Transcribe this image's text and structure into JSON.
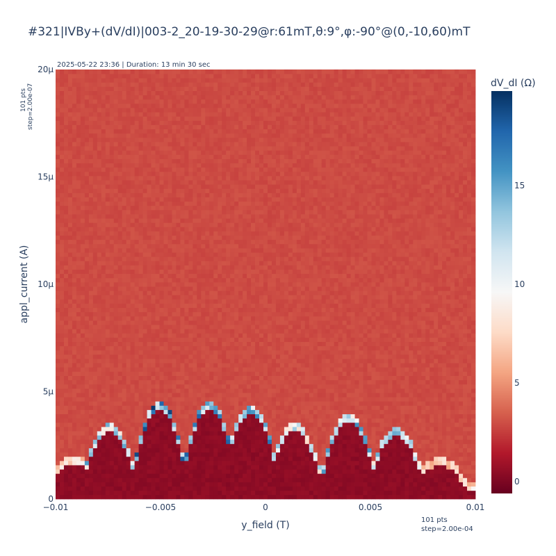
{
  "chart_data": {
    "type": "heatmap",
    "title": "#321|IVBy+(dV/dI)|003-2_20-19-30-29@r:61mT,θ:9°,φ:-90°@(0,-10,60)mT",
    "subtitle": "2025-05-22 23:36 | Duration: 13 min 30 sec",
    "xlabel": "y_field (T)",
    "ylabel": "appl_current (A)",
    "x_range": [
      -0.01,
      0.01
    ],
    "y_range": [
      0,
      2e-05
    ],
    "x_points": 101,
    "y_points": 101,
    "x_step": 0.0002,
    "y_step": 2e-07,
    "x_points_label": "101 pts",
    "x_step_label": "step=2.00e-04",
    "y_points_label": "101 pts",
    "y_step_label": "step=2.00e-07",
    "x_ticks": [
      {
        "value": -0.01,
        "label": "−0.01"
      },
      {
        "value": -0.005,
        "label": "−0.005"
      },
      {
        "value": 0,
        "label": "0"
      },
      {
        "value": 0.005,
        "label": "0.005"
      },
      {
        "value": 0.01,
        "label": "0.01"
      }
    ],
    "y_ticks": [
      {
        "value": 0,
        "label": "0"
      },
      {
        "value": 5e-06,
        "label": "5μ"
      },
      {
        "value": 1e-05,
        "label": "10μ"
      },
      {
        "value": 1.5e-05,
        "label": "15μ"
      },
      {
        "value": 2e-05,
        "label": "20μ"
      }
    ],
    "colorbar": {
      "title": "dV_dI (Ω)",
      "min": -0.6,
      "max": 19.8,
      "ticks": [
        0,
        5,
        10,
        15
      ],
      "colorscale": "RdBu"
    },
    "normal_state_resistance": 2.9,
    "superconducting_resistance": 0.2,
    "critical_current_lobes": [
      {
        "y_field": -0.0092,
        "critical_current": 1.7e-06,
        "peak_dV_dI": 9.5
      },
      {
        "y_field": -0.0075,
        "critical_current": 3.2e-06,
        "peak_dV_dI": 15.5
      },
      {
        "y_field": -0.0051,
        "critical_current": 4.2e-06,
        "peak_dV_dI": 19.5
      },
      {
        "y_field": -0.0027,
        "critical_current": 4.2e-06,
        "peak_dV_dI": 18.5
      },
      {
        "y_field": -0.0007,
        "critical_current": 4e-06,
        "peak_dV_dI": 17.5
      },
      {
        "y_field": 0.0014,
        "critical_current": 3.2e-06,
        "peak_dV_dI": 14
      },
      {
        "y_field": 0.004,
        "critical_current": 3.6e-06,
        "peak_dV_dI": 16
      },
      {
        "y_field": 0.0063,
        "critical_current": 3e-06,
        "peak_dV_dI": 15
      },
      {
        "y_field": 0.0084,
        "critical_current": 1.6e-06,
        "peak_dV_dI": 9
      }
    ]
  }
}
